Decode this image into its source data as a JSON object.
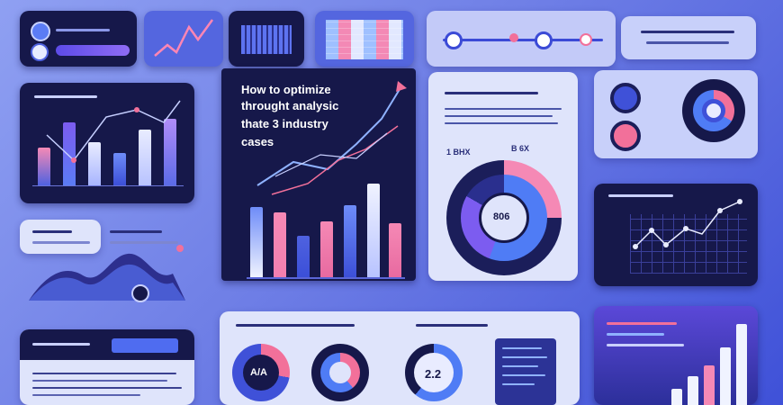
{
  "headline": {
    "line1": "How to optimize",
    "line2": "throught analysic",
    "line3": "thate 3 industry",
    "line4": "cases"
  },
  "ring_value": "806",
  "stats": {
    "top_left": "1 BHX",
    "top_right": "B 6X"
  },
  "donuts": {
    "first": "A/A",
    "third": "2.2"
  },
  "colors": {
    "accent_pink": "#f2709a",
    "accent_blue": "#4f7cf5",
    "accent_violet": "#7c5cf0",
    "dark_panel": "#16184a"
  }
}
